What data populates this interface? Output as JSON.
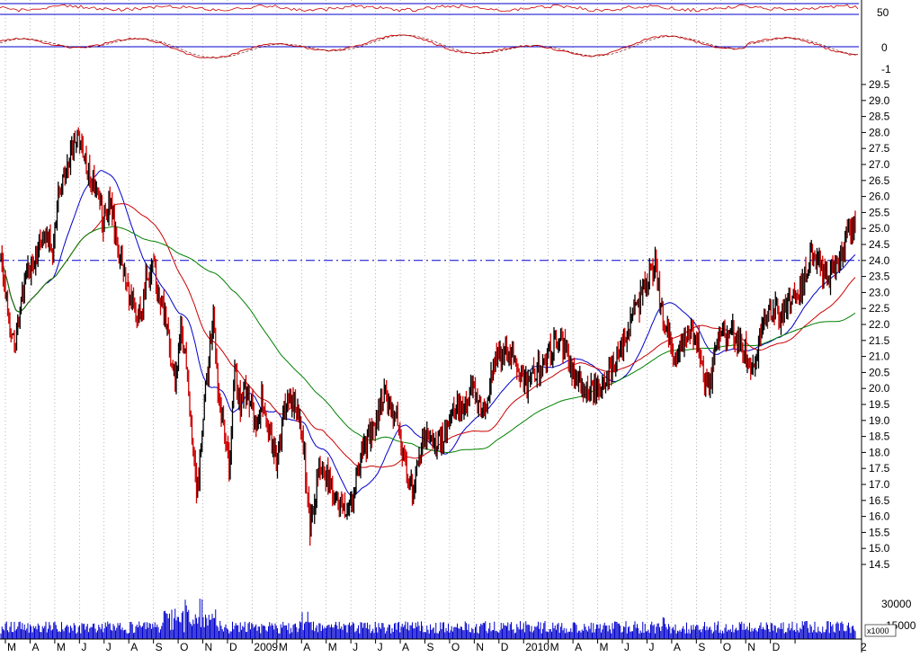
{
  "chart_data": {
    "type": "candlestick",
    "price_axis": {
      "range": [
        14.5,
        29.5
      ],
      "ticks": [
        "29.5",
        "29.0",
        "28.5",
        "28.0",
        "27.5",
        "27.0",
        "26.5",
        "26.0",
        "25.5",
        "25.0",
        "24.5",
        "24.0",
        "23.5",
        "23.0",
        "22.5",
        "22.0",
        "21.5",
        "21.0",
        "20.5",
        "20.0",
        "19.5",
        "19.0",
        "18.5",
        "18.0",
        "17.5",
        "17.0",
        "16.5",
        "16.0",
        "15.5",
        "15.0",
        "14.5"
      ],
      "reference_line": 24.0
    },
    "x_axis": {
      "labels": [
        "M",
        "A",
        "M",
        "J",
        "J",
        "A",
        "S",
        "O",
        "N",
        "D",
        "2009",
        "M",
        "A",
        "M",
        "J",
        "J",
        "A",
        "S",
        "O",
        "N",
        "D",
        "2010",
        "M",
        "A",
        "M",
        "J",
        "J",
        "A",
        "S",
        "O",
        "N",
        "D",
        "2"
      ]
    },
    "indicator_top": {
      "ticks": [
        "50"
      ],
      "reference": 50
    },
    "indicator_mid": {
      "ticks": [
        "0",
        "-1"
      ],
      "reference": 0
    },
    "volume_axis": {
      "ticks": [
        "30000",
        "15000"
      ],
      "unit": "x1000"
    },
    "price_anchors": [
      [
        0,
        24.0
      ],
      [
        6,
        23.0
      ],
      [
        10,
        22.0
      ],
      [
        16,
        21.4
      ],
      [
        22,
        22.8
      ],
      [
        30,
        23.6
      ],
      [
        40,
        24.2
      ],
      [
        50,
        25.0
      ],
      [
        58,
        24.3
      ],
      [
        64,
        26.2
      ],
      [
        72,
        26.8
      ],
      [
        80,
        27.6
      ],
      [
        86,
        28.1
      ],
      [
        92,
        27.2
      ],
      [
        100,
        26.6
      ],
      [
        108,
        26.2
      ],
      [
        114,
        25.2
      ],
      [
        122,
        25.8
      ],
      [
        128,
        24.5
      ],
      [
        134,
        24.0
      ],
      [
        140,
        23.1
      ],
      [
        148,
        22.6
      ],
      [
        156,
        22.2
      ],
      [
        162,
        23.5
      ],
      [
        170,
        23.7
      ],
      [
        176,
        23.0
      ],
      [
        182,
        22.3
      ],
      [
        188,
        21.2
      ],
      [
        194,
        20.2
      ],
      [
        200,
        21.8
      ],
      [
        206,
        21.0
      ],
      [
        212,
        18.5
      ],
      [
        218,
        16.6
      ],
      [
        224,
        18.8
      ],
      [
        230,
        20.6
      ],
      [
        236,
        22.4
      ],
      [
        242,
        19.8
      ],
      [
        248,
        19.0
      ],
      [
        254,
        17.4
      ],
      [
        260,
        20.5
      ],
      [
        266,
        19.5
      ],
      [
        272,
        20.0
      ],
      [
        278,
        19.5
      ],
      [
        284,
        19.0
      ],
      [
        290,
        19.7
      ],
      [
        296,
        18.8
      ],
      [
        302,
        18.2
      ],
      [
        308,
        17.6
      ],
      [
        314,
        19.3
      ],
      [
        320,
        19.8
      ],
      [
        326,
        19.4
      ],
      [
        332,
        19.2
      ],
      [
        338,
        17.6
      ],
      [
        344,
        15.6
      ],
      [
        350,
        16.8
      ],
      [
        356,
        17.7
      ],
      [
        362,
        17.3
      ],
      [
        368,
        16.7
      ],
      [
        374,
        16.5
      ],
      [
        380,
        16.2
      ],
      [
        386,
        16.0
      ],
      [
        392,
        16.7
      ],
      [
        398,
        17.5
      ],
      [
        404,
        18.2
      ],
      [
        410,
        18.6
      ],
      [
        416,
        18.9
      ],
      [
        422,
        19.5
      ],
      [
        428,
        19.8
      ],
      [
        434,
        19.3
      ],
      [
        440,
        19.0
      ],
      [
        446,
        18.2
      ],
      [
        452,
        17.3
      ],
      [
        458,
        16.7
      ],
      [
        464,
        17.8
      ],
      [
        470,
        18.4
      ],
      [
        476,
        18.5
      ],
      [
        482,
        18.1
      ],
      [
        488,
        18.3
      ],
      [
        494,
        18.6
      ],
      [
        500,
        19.0
      ],
      [
        506,
        19.3
      ],
      [
        512,
        19.5
      ],
      [
        518,
        19.8
      ],
      [
        524,
        20.0
      ],
      [
        530,
        19.5
      ],
      [
        536,
        19.2
      ],
      [
        542,
        19.8
      ],
      [
        548,
        20.7
      ],
      [
        554,
        21.0
      ],
      [
        560,
        21.3
      ],
      [
        566,
        21.0
      ],
      [
        572,
        20.8
      ],
      [
        578,
        20.6
      ],
      [
        584,
        20.0
      ],
      [
        590,
        20.3
      ],
      [
        596,
        20.7
      ],
      [
        602,
        20.5
      ],
      [
        608,
        21.1
      ],
      [
        614,
        21.4
      ],
      [
        620,
        21.6
      ],
      [
        626,
        21.3
      ],
      [
        632,
        20.8
      ],
      [
        638,
        20.5
      ],
      [
        644,
        20.2
      ],
      [
        650,
        20.0
      ],
      [
        656,
        20.0
      ],
      [
        662,
        19.9
      ],
      [
        668,
        20.1
      ],
      [
        674,
        20.3
      ],
      [
        680,
        20.7
      ],
      [
        686,
        21.1
      ],
      [
        692,
        21.5
      ],
      [
        698,
        21.9
      ],
      [
        704,
        22.5
      ],
      [
        710,
        22.7
      ],
      [
        716,
        23.2
      ],
      [
        722,
        23.6
      ],
      [
        728,
        23.8
      ],
      [
        734,
        22.6
      ],
      [
        740,
        21.9
      ],
      [
        746,
        21.2
      ],
      [
        752,
        20.6
      ],
      [
        758,
        21.5
      ],
      [
        764,
        21.9
      ],
      [
        770,
        21.6
      ],
      [
        776,
        21.3
      ],
      [
        782,
        20.2
      ],
      [
        788,
        19.9
      ],
      [
        794,
        21.2
      ],
      [
        800,
        21.7
      ],
      [
        806,
        21.5
      ],
      [
        812,
        21.9
      ],
      [
        818,
        21.6
      ],
      [
        824,
        21.3
      ],
      [
        830,
        21.1
      ],
      [
        836,
        20.8
      ],
      [
        842,
        21.3
      ],
      [
        848,
        21.9
      ],
      [
        854,
        22.3
      ],
      [
        860,
        22.6
      ],
      [
        866,
        22.2
      ],
      [
        872,
        22.5
      ],
      [
        878,
        22.6
      ],
      [
        884,
        22.9
      ],
      [
        890,
        23.2
      ],
      [
        896,
        23.7
      ],
      [
        902,
        24.1
      ],
      [
        908,
        23.9
      ],
      [
        914,
        23.6
      ],
      [
        920,
        23.5
      ],
      [
        926,
        23.8
      ],
      [
        932,
        24.2
      ],
      [
        938,
        24.6
      ],
      [
        944,
        24.9
      ],
      [
        950,
        25.2
      ]
    ],
    "series": [
      {
        "kind": "price",
        "color": "#cc0000",
        "alt_color": "#000000"
      },
      {
        "kind": "moving_average",
        "color": "#0000cc",
        "period": 10
      },
      {
        "kind": "moving_average",
        "color": "#cc0000",
        "period": 20
      },
      {
        "kind": "moving_average",
        "color": "#008000",
        "period": 40
      }
    ],
    "colors": {
      "reference_line": "#0000cc",
      "grid": "#888888",
      "volume": "#0000cc",
      "indicator": "#cc0000"
    },
    "grid": "vertical-dotted"
  }
}
